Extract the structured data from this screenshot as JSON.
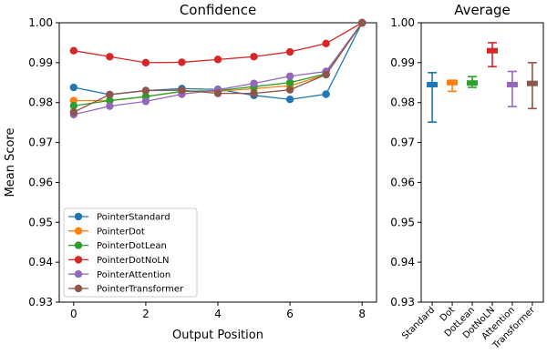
{
  "chart_data": [
    {
      "type": "line",
      "title": "Confidence",
      "xlabel": "Output Position",
      "ylabel": "Mean Score",
      "xlim": [
        -0.4,
        8.4
      ],
      "ylim": [
        0.93,
        1.0
      ],
      "xticks": [
        0,
        2,
        4,
        6,
        8
      ],
      "yticks": [
        0.93,
        0.94,
        0.95,
        0.96,
        0.97,
        0.98,
        0.99,
        1.0
      ],
      "ytick_labels": [
        "0.93",
        "0.94",
        "0.95",
        "0.96",
        "0.97",
        "0.98",
        "0.99",
        "1.00"
      ],
      "grid": false,
      "legend": "lower-left",
      "x": [
        0,
        1,
        2,
        3,
        4,
        5,
        6,
        7,
        8
      ],
      "series": [
        {
          "name": "PointerStandard",
          "color": "#1f77b4",
          "values": [
            0.9838,
            0.982,
            0.983,
            0.9835,
            0.9833,
            0.9818,
            0.9808,
            0.9821,
            1.0
          ]
        },
        {
          "name": "PointerDot",
          "color": "#ff7f0e",
          "values": [
            0.9805,
            0.9805,
            0.9815,
            0.9828,
            0.9828,
            0.9835,
            0.9842,
            0.987,
            1.0
          ]
        },
        {
          "name": "PointerDotLean",
          "color": "#2ca02c",
          "values": [
            0.9792,
            0.9805,
            0.9815,
            0.9828,
            0.983,
            0.984,
            0.985,
            0.9872,
            1.0
          ]
        },
        {
          "name": "PointerDotNoLN",
          "color": "#d62728",
          "values": [
            0.993,
            0.9915,
            0.99,
            0.9901,
            0.9908,
            0.9915,
            0.9927,
            0.9948,
            1.0
          ]
        },
        {
          "name": "PointerAttention",
          "color": "#9467bd",
          "values": [
            0.977,
            0.9791,
            0.9803,
            0.9821,
            0.9832,
            0.9848,
            0.9866,
            0.9878,
            1.0
          ]
        },
        {
          "name": "PointerTransformer",
          "color": "#8c564b",
          "values": [
            0.9776,
            0.982,
            0.983,
            0.9831,
            0.9823,
            0.9823,
            0.9832,
            0.987,
            1.0
          ]
        }
      ]
    },
    {
      "type": "errorbar",
      "title": "Average",
      "ylim": [
        0.93,
        1.0
      ],
      "yticks": [
        0.93,
        0.94,
        0.95,
        0.96,
        0.97,
        0.98,
        0.99,
        1.0
      ],
      "ytick_labels": [
        "0.93",
        "0.94",
        "0.95",
        "0.96",
        "0.97",
        "0.98",
        "0.99",
        "1.00"
      ],
      "grid": false,
      "categories": [
        "Standard",
        "Dot",
        "DotLean",
        "DotNoLN",
        "Attention",
        "Transformer"
      ],
      "colors": [
        "#1f77b4",
        "#ff7f0e",
        "#2ca02c",
        "#d62728",
        "#9467bd",
        "#8c564b"
      ],
      "means": [
        0.9845,
        0.985,
        0.9849,
        0.993,
        0.9845,
        0.9848
      ],
      "lower": [
        0.9751,
        0.9828,
        0.9838,
        0.989,
        0.979,
        0.9785
      ],
      "upper": [
        0.9875,
        0.9856,
        0.9865,
        0.995,
        0.9878,
        0.99
      ]
    }
  ]
}
